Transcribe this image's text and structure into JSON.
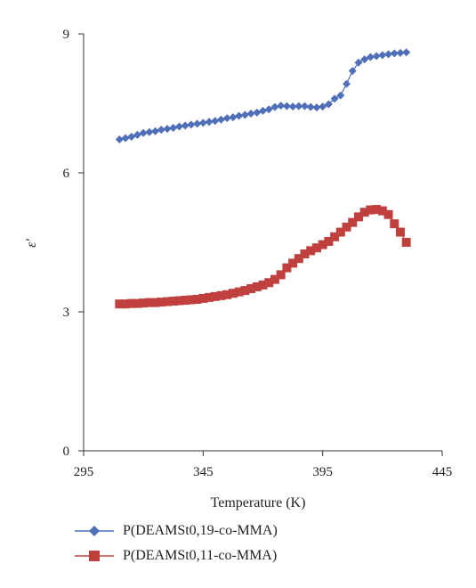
{
  "chart_data": {
    "type": "scatter",
    "title": "",
    "xlabel": "Temperature (K)",
    "ylabel": "ε′",
    "xlim": [
      295,
      445
    ],
    "ylim": [
      0,
      9
    ],
    "xticks": [
      295,
      345,
      395,
      445
    ],
    "yticks": [
      0,
      3,
      6,
      9
    ],
    "grid": false,
    "legend_position": "bottom-left",
    "series": [
      {
        "name": "P(DEAMSt0,19-co-MMA)",
        "color": "#4f6fb8",
        "marker": "diamond",
        "connected": true,
        "x": [
          310,
          312.5,
          315,
          317.5,
          320,
          322.5,
          325,
          327.5,
          330,
          332.5,
          335,
          337.5,
          340,
          342.5,
          345,
          347.5,
          350,
          352.5,
          355,
          357.5,
          360,
          362.5,
          365,
          367.5,
          370,
          372.5,
          375,
          377.5,
          380,
          382.5,
          385,
          387.5,
          390,
          392.5,
          395,
          397.5,
          400,
          402.5,
          405,
          407.5,
          410,
          412.5,
          415,
          417.5,
          420,
          422.5,
          425,
          427.5,
          430
        ],
        "values": [
          6.72,
          6.75,
          6.78,
          6.82,
          6.86,
          6.88,
          6.9,
          6.93,
          6.95,
          6.97,
          7,
          7.02,
          7.04,
          7.06,
          7.08,
          7.1,
          7.12,
          7.15,
          7.18,
          7.2,
          7.23,
          7.25,
          7.28,
          7.3,
          7.34,
          7.37,
          7.42,
          7.45,
          7.44,
          7.43,
          7.44,
          7.44,
          7.42,
          7.41,
          7.43,
          7.48,
          7.6,
          7.67,
          7.92,
          8.2,
          8.38,
          8.45,
          8.5,
          8.52,
          8.54,
          8.56,
          8.58,
          8.59,
          8.6
        ]
      },
      {
        "name": "P(DEAMSt0,11-co-MMA)",
        "color": "#c0403e",
        "marker": "square",
        "connected": true,
        "x": [
          310,
          312.5,
          315,
          317.5,
          320,
          322.5,
          325,
          327.5,
          330,
          332.5,
          335,
          337.5,
          340,
          342.5,
          345,
          347.5,
          350,
          352.5,
          355,
          357.5,
          360,
          362.5,
          365,
          367.5,
          370,
          372.5,
          375,
          377.5,
          380,
          382.5,
          385,
          387.5,
          390,
          392.5,
          395,
          397.5,
          400,
          402.5,
          405,
          407.5,
          410,
          412.5,
          415,
          417.5,
          420,
          422.5,
          425,
          427.5,
          430
        ],
        "values": [
          3.17,
          3.17,
          3.18,
          3.18,
          3.19,
          3.2,
          3.2,
          3.21,
          3.22,
          3.23,
          3.24,
          3.25,
          3.26,
          3.27,
          3.29,
          3.31,
          3.33,
          3.35,
          3.37,
          3.4,
          3.43,
          3.46,
          3.5,
          3.54,
          3.58,
          3.63,
          3.7,
          3.8,
          3.95,
          4.05,
          4.15,
          4.25,
          4.32,
          4.38,
          4.45,
          4.52,
          4.62,
          4.72,
          4.83,
          4.93,
          5.05,
          5.15,
          5.2,
          5.21,
          5.18,
          5.1,
          4.9,
          4.72,
          4.5
        ]
      }
    ]
  }
}
